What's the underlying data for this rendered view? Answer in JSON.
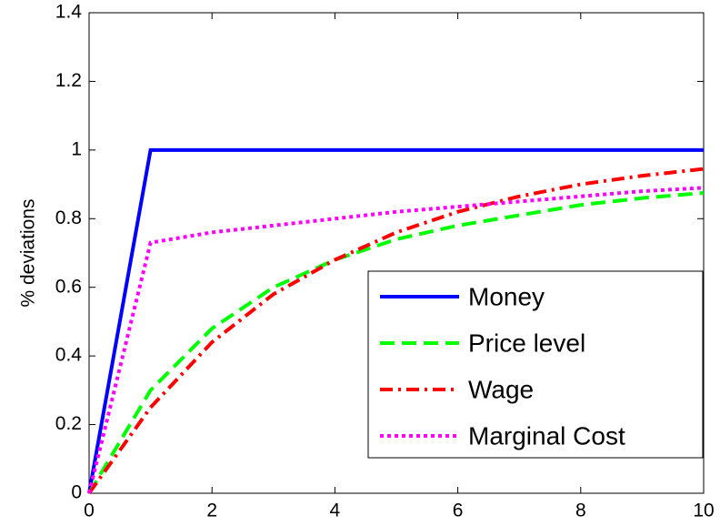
{
  "chart_data": {
    "type": "line",
    "ylabel": "% deviations",
    "x": [
      0,
      1,
      2,
      3,
      4,
      5,
      6,
      7,
      8,
      9,
      10
    ],
    "series": [
      {
        "name": "Money",
        "color": "#0000ff",
        "dash": "solid",
        "values": [
          0,
          1,
          1,
          1,
          1,
          1,
          1,
          1,
          1,
          1,
          1
        ]
      },
      {
        "name": "Price level",
        "color": "#00ff00",
        "dash": "dashed",
        "values": [
          0,
          0.3,
          0.48,
          0.6,
          0.68,
          0.74,
          0.78,
          0.81,
          0.84,
          0.86,
          0.875
        ]
      },
      {
        "name": "Wage",
        "color": "#ff0000",
        "dash": "dashdot",
        "values": [
          0,
          0.25,
          0.44,
          0.58,
          0.68,
          0.76,
          0.82,
          0.865,
          0.9,
          0.925,
          0.945
        ]
      },
      {
        "name": "Marginal Cost",
        "color": "#ff00ff",
        "dash": "dotted",
        "values": [
          0,
          0.73,
          0.76,
          0.78,
          0.8,
          0.82,
          0.835,
          0.85,
          0.865,
          0.88,
          0.89
        ]
      }
    ],
    "xlim": [
      0,
      10
    ],
    "xticks": [
      0,
      2,
      4,
      6,
      8,
      10
    ],
    "ylim": [
      0,
      1.4
    ],
    "yticks": [
      0,
      0.2,
      0.4,
      0.6,
      0.8,
      1,
      1.2,
      1.4
    ],
    "legend": "lower right"
  }
}
